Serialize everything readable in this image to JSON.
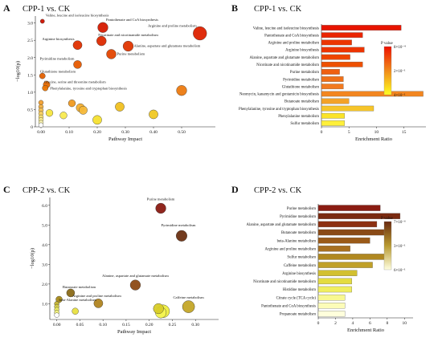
{
  "panels": {
    "A": {
      "letter": "A",
      "title": "CPP-1 vs. CK"
    },
    "B": {
      "letter": "B",
      "title": "CPP-1 vs. CK"
    },
    "C": {
      "letter": "C",
      "title": "CPP-2 vs. CK"
    },
    "D": {
      "letter": "D",
      "title": "CPP-2 vs. CK"
    }
  },
  "chart_data": [
    {
      "id": "A",
      "type": "scatter",
      "title": "CPP-1 vs. CK",
      "xlabel": "Pathway Impact",
      "ylabel": "−log10(p)",
      "xlim": [
        -0.02,
        0.62
      ],
      "ylim": [
        0,
        3.2
      ],
      "xticks": [
        "0.00",
        "0.10",
        "0.20",
        "0.30",
        "0.40",
        "0.50"
      ],
      "xtick_values": [
        0,
        0.1,
        0.2,
        0.3,
        0.4,
        0.5
      ],
      "yticks": [
        "0",
        "0.5",
        "1.0",
        "1.5",
        "2.0",
        "2.5",
        "3.0"
      ],
      "ytick_values": [
        0,
        0.5,
        1.0,
        1.5,
        2.0,
        2.5,
        3.0
      ],
      "points": [
        {
          "x": 0.005,
          "y": 3.05,
          "size": 0.08,
          "color": "#cc1100",
          "label": "Valine, leucine and isoleucine biosynthesis"
        },
        {
          "x": 0.22,
          "y": 2.87,
          "size": 0.55,
          "color": "#d51a00",
          "label": "Pantothenate and CoA biosynthesis"
        },
        {
          "x": 0.565,
          "y": 2.7,
          "size": 0.8,
          "color": "#dd2200",
          "label": "Arginine and proline metabolism"
        },
        {
          "x": 0.215,
          "y": 2.48,
          "size": 0.5,
          "color": "#dd2a00",
          "label": "Nicotinate and nicotinamide metabolism"
        },
        {
          "x": 0.13,
          "y": 2.36,
          "size": 0.45,
          "color": "#e03000",
          "label": "Arginine biosynthesis"
        },
        {
          "x": 0.31,
          "y": 2.33,
          "size": 0.55,
          "color": "#e03500",
          "label": "Alanine, aspartate and glutamate metabolism"
        },
        {
          "x": 0.25,
          "y": 2.1,
          "size": 0.5,
          "color": "#e34500",
          "label": "Purine metabolism"
        },
        {
          "x": 0.13,
          "y": 1.8,
          "size": 0.38,
          "color": "#e65a00",
          "label": "Pyrimidine metabolism"
        },
        {
          "x": 0.005,
          "y": 1.47,
          "size": 0.2,
          "color": "#e46000",
          "label": "Glutathione metabolism"
        },
        {
          "x": 0.02,
          "y": 1.22,
          "size": 0.28,
          "color": "#e86a00",
          "label": "Glycine, serine and threonine metabolism"
        },
        {
          "x": 0.015,
          "y": 1.12,
          "size": 0.2,
          "color": "#ea7400",
          "label": "Phenylalanine, tyrosine and tryptophan biosynthesis"
        },
        {
          "x": 0.5,
          "y": 1.05,
          "size": 0.55,
          "color": "#ec7a10",
          "label": ""
        },
        {
          "x": 0.11,
          "y": 0.68,
          "size": 0.3,
          "color": "#f09a20",
          "label": ""
        },
        {
          "x": 0.14,
          "y": 0.55,
          "size": 0.4,
          "color": "#f5b030",
          "label": ""
        },
        {
          "x": 0.15,
          "y": 0.48,
          "size": 0.4,
          "color": "#f5b838",
          "label": ""
        },
        {
          "x": 0.28,
          "y": 0.58,
          "size": 0.45,
          "color": "#f0c020",
          "label": ""
        },
        {
          "x": 0.4,
          "y": 0.36,
          "size": 0.45,
          "color": "#f0c823",
          "label": ""
        },
        {
          "x": 0.2,
          "y": 0.2,
          "size": 0.45,
          "color": "#f5e030",
          "label": ""
        },
        {
          "x": 0.03,
          "y": 0.4,
          "size": 0.3,
          "color": "#f7e640",
          "label": ""
        },
        {
          "x": 0.08,
          "y": 0.33,
          "size": 0.3,
          "color": "#f8ea50",
          "label": ""
        },
        {
          "x": 0.0,
          "y": 0.7,
          "size": 0.12,
          "color": "#f2a030",
          "label": ""
        },
        {
          "x": 0.0,
          "y": 0.58,
          "size": 0.12,
          "color": "#f4b040",
          "label": ""
        },
        {
          "x": 0.0,
          "y": 0.48,
          "size": 0.12,
          "color": "#f6c050",
          "label": ""
        },
        {
          "x": 0.0,
          "y": 0.38,
          "size": 0.12,
          "color": "#f8d060",
          "label": ""
        },
        {
          "x": 0.0,
          "y": 0.28,
          "size": 0.12,
          "color": "#fae070",
          "label": ""
        },
        {
          "x": 0.0,
          "y": 0.2,
          "size": 0.12,
          "color": "#fcee90",
          "label": ""
        },
        {
          "x": 0.0,
          "y": 0.12,
          "size": 0.12,
          "color": "#fdf6b0",
          "label": ""
        },
        {
          "x": 0.0,
          "y": 0.05,
          "size": 0.12,
          "color": "#ffffff",
          "label": ""
        }
      ]
    },
    {
      "id": "B",
      "type": "bar",
      "title": "CPP-1 vs. CK",
      "xlabel": "Enrichment Ratio",
      "ylabel": "",
      "xlim": [
        0,
        19
      ],
      "xticks": [
        "0",
        "5",
        "10",
        "15"
      ],
      "xtick_values": [
        0,
        5,
        10,
        15
      ],
      "legend": {
        "title": "P value",
        "labels": [
          "8×10⁻⁴",
          "2×10⁻¹",
          "4×10⁻¹"
        ],
        "colors": [
          "#ee1100",
          "#f08a1a",
          "#ffff22"
        ]
      },
      "categories": [
        "Valine, leucine and isoleucine biosynthesis",
        "Pantothenate and CoA biosynthesis",
        "Arginine and proline metabolism",
        "Arginine biosynthesis",
        "Alanine, aspartate and glutamate metabolism",
        "Nicotinate and nicotinamide metabolism",
        "Purine metabolism",
        "Pyrimidine metabolism",
        "Glutathione metabolism",
        "Neomycin, kanamycin and gentamicin biosynthesis",
        "Butanoate metabolism",
        "Phenylalanine, tyrosine and tryptophan biosynthesis",
        "Phenylalanine metabolism",
        "Sulfur metabolism"
      ],
      "values": [
        14.5,
        7.5,
        5.5,
        7.8,
        5.2,
        7.5,
        3.3,
        4.0,
        4.0,
        18.5,
        5.0,
        9.5,
        4.2,
        4.2
      ],
      "colors": [
        "#e81400",
        "#ea2500",
        "#ec3500",
        "#ec3500",
        "#ee4500",
        "#ee5000",
        "#f06010",
        "#f07018",
        "#f27a20",
        "#f28620",
        "#f3a228",
        "#f6c52a",
        "#fbe428",
        "#fff03a"
      ]
    },
    {
      "id": "C",
      "type": "scatter",
      "title": "CPP-2 vs. CK",
      "xlabel": "Pathway Impact",
      "ylabel": "−log10(p)",
      "xlim": [
        -0.015,
        0.35
      ],
      "ylim": [
        0.2,
        6.4
      ],
      "xticks": [
        "0.00",
        "0.05",
        "0.10",
        "0.15",
        "0.20",
        "0.25",
        "0.30"
      ],
      "xtick_values": [
        0,
        0.05,
        0.1,
        0.15,
        0.2,
        0.25,
        0.3
      ],
      "yticks": [
        "1.0",
        "2.0",
        "3.0",
        "4.0",
        "5.0",
        "6.0"
      ],
      "ytick_values": [
        1,
        2,
        3,
        4,
        5,
        6
      ],
      "points": [
        {
          "x": 0.225,
          "y": 5.85,
          "size": 0.55,
          "color": "#8a1a12",
          "label": "Purine metabolism"
        },
        {
          "x": 0.27,
          "y": 4.45,
          "size": 0.6,
          "color": "#6a3012",
          "label": "Pyrimidine metabolism"
        },
        {
          "x": 0.17,
          "y": 1.95,
          "size": 0.55,
          "color": "#8c4a14",
          "label": "Alanine, aspartate and glutamate metabolism"
        },
        {
          "x": 0.03,
          "y": 1.55,
          "size": 0.38,
          "color": "#8a6a18",
          "label": "Butanoate metabolism"
        },
        {
          "x": 0.005,
          "y": 1.22,
          "size": 0.25,
          "color": "#a88a18",
          "label": "beta-Alanine metabolism"
        },
        {
          "x": 0.09,
          "y": 1.02,
          "size": 0.45,
          "color": "#b08420",
          "label": "Arginine and proline metabolism"
        },
        {
          "x": 0.285,
          "y": 0.85,
          "size": 0.7,
          "color": "#c4a628",
          "label": "Caffeine metabolism"
        },
        {
          "x": 0.22,
          "y": 0.75,
          "size": 0.55,
          "color": "#d8cc28",
          "label": ""
        },
        {
          "x": 0.23,
          "y": 0.62,
          "size": 0.75,
          "color": "#eeee40",
          "label": ""
        },
        {
          "x": 0.225,
          "y": 0.55,
          "size": 0.6,
          "color": "#f4f450",
          "label": ""
        },
        {
          "x": 0.04,
          "y": 0.62,
          "size": 0.25,
          "color": "#e8e040",
          "label": ""
        },
        {
          "x": 0.0,
          "y": 1.0,
          "size": 0.12,
          "color": "#c0b030",
          "label": ""
        },
        {
          "x": 0.0,
          "y": 0.85,
          "size": 0.12,
          "color": "#d8d048",
          "label": ""
        },
        {
          "x": 0.0,
          "y": 0.7,
          "size": 0.12,
          "color": "#eaea60",
          "label": ""
        },
        {
          "x": 0.0,
          "y": 0.55,
          "size": 0.12,
          "color": "#f4f480",
          "label": ""
        },
        {
          "x": 0.0,
          "y": 0.42,
          "size": 0.12,
          "color": "#ffffff",
          "label": ""
        }
      ]
    },
    {
      "id": "D",
      "type": "bar",
      "title": "CPP-2 vs. CK",
      "xlabel": "Enrichment Ratio",
      "ylabel": "",
      "xlim": [
        0,
        11
      ],
      "xticks": [
        "0",
        "2",
        "4",
        "6",
        "8",
        "10"
      ],
      "xtick_values": [
        0,
        2,
        4,
        6,
        8,
        10
      ],
      "legend": {
        "title": "P value",
        "labels": [
          "7×10⁻⁶",
          "3×10⁻¹",
          "6×10⁻¹"
        ],
        "colors": [
          "#6a2a10",
          "#b89a30",
          "#ffffe0"
        ]
      },
      "categories": [
        "Purine metabolism",
        "Pyrimidine metabolism",
        "Alanine, aspartate and glutamate metabolism",
        "Butanoate metabolism",
        "beta-Alanine metabolism",
        "Arginine and proline metabolism",
        "Sulfur metabolism",
        "Caffeine metabolism",
        "Arginine biosynthesis",
        "Nicotinate and nicotinamide metabolism",
        "Histidine metabolism",
        "Citrate cycle (TCA cycle)",
        "Pantothenate and CoA biosynthesis",
        "Propanoate metabolism"
      ],
      "values": [
        7.2,
        9.5,
        6.8,
        8.4,
        6.0,
        3.7,
        7.7,
        6.3,
        4.5,
        3.9,
        3.9,
        3.1,
        3.1,
        3.1
      ],
      "colors": [
        "#8a1c12",
        "#7a2a10",
        "#8c3012",
        "#8a4a16",
        "#9a5a18",
        "#a87020",
        "#b08820",
        "#c0a028",
        "#d2c030",
        "#e4dc40",
        "#f0ee60",
        "#f8f890",
        "#fcfcb8",
        "#ffffdc"
      ]
    }
  ]
}
